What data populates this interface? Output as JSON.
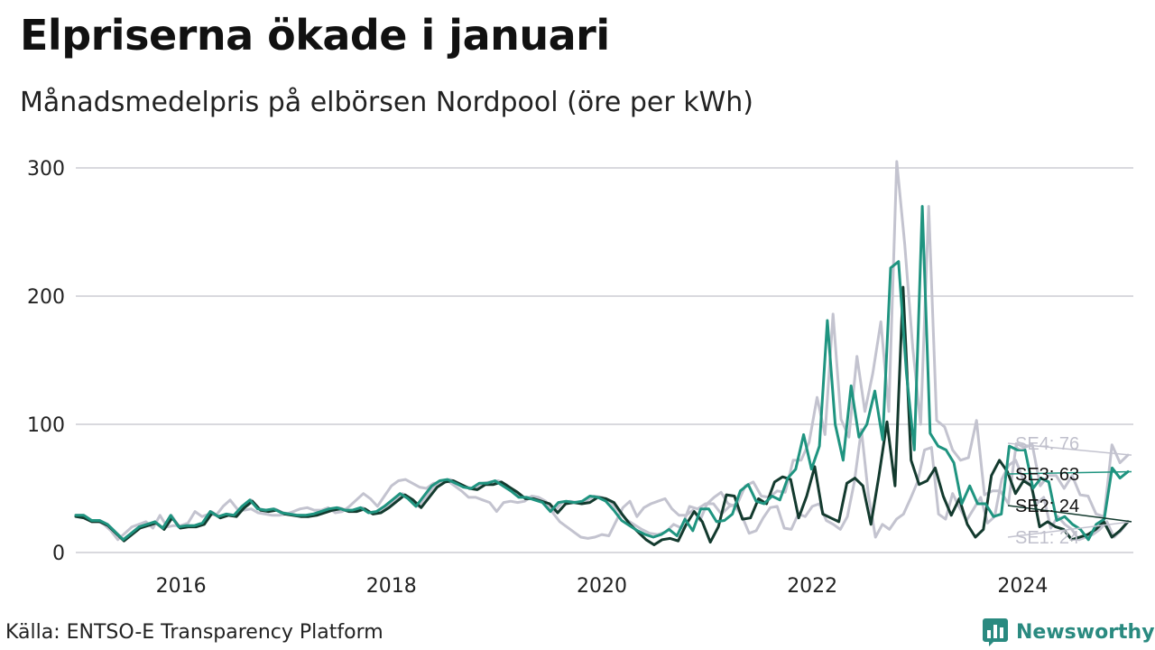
{
  "title": "Elpriserna ökade i januari",
  "subtitle": "Månadsmedelpris på elbörsen Nordpool (öre per kWh)",
  "source": "Källa: ENTSO-E Transparency Platform",
  "brand": {
    "name": "Newsworthy",
    "icon": "bar-chart-speech-bubble-icon",
    "color": "#2a8a80"
  },
  "chart_data": {
    "type": "line",
    "x_start": "2015-01",
    "x_end": "2025-01",
    "frequency": "monthly",
    "ylim": [
      0,
      300
    ],
    "yticks": [
      0,
      100,
      200,
      300
    ],
    "xticks": [
      "2016",
      "2018",
      "2020",
      "2022",
      "2024"
    ],
    "grid": "horizontal",
    "legend": "end-labels",
    "series": [
      {
        "name": "SE1",
        "end_label": "SE1: 24",
        "color": "#c3c3cf",
        "values": [
          29,
          29,
          25,
          25,
          22,
          17,
          10,
          15,
          20,
          22,
          24,
          19,
          29,
          20,
          21,
          21,
          23,
          32,
          28,
          30,
          29,
          36,
          41,
          34,
          33,
          34,
          31,
          30,
          29,
          29,
          30,
          32,
          34,
          35,
          33,
          33,
          35,
          31,
          32,
          36,
          41,
          46,
          42,
          36,
          44,
          52,
          56,
          57,
          54,
          51,
          50,
          54,
          54,
          56,
          52,
          48,
          43,
          43,
          41,
          39,
          32,
          39,
          40,
          39,
          40,
          44,
          43,
          40,
          31,
          24,
          20,
          16,
          12,
          11,
          12,
          14,
          13,
          24,
          35,
          40,
          28,
          35,
          38,
          40,
          42,
          34,
          29,
          29,
          33,
          25,
          38,
          43,
          47,
          38,
          36,
          28,
          15,
          17,
          27,
          35,
          36,
          19,
          18,
          30,
          28,
          36,
          38,
          25,
          22,
          18,
          28,
          55,
          96,
          45,
          12,
          22,
          18,
          26,
          30,
          42,
          55,
          80,
          82,
          30,
          26,
          46,
          35,
          25,
          34,
          43,
          23,
          28,
          57,
          68,
          72,
          58,
          54,
          38,
          43,
          19,
          28,
          22,
          18,
          10,
          12,
          14,
          18,
          24,
          12,
          17,
          24
        ]
      },
      {
        "name": "SE2",
        "end_label": "SE2: 24",
        "color": "#133a2e",
        "values": [
          28,
          27,
          24,
          24,
          21,
          15,
          9,
          14,
          19,
          21,
          23,
          18,
          27,
          19,
          20,
          20,
          22,
          31,
          27,
          29,
          28,
          35,
          40,
          33,
          32,
          33,
          30,
          29,
          28,
          28,
          29,
          31,
          33,
          34,
          32,
          32,
          34,
          30,
          31,
          35,
          40,
          45,
          41,
          35,
          43,
          51,
          55,
          56,
          53,
          50,
          49,
          53,
          53,
          55,
          51,
          47,
          42,
          42,
          40,
          38,
          31,
          38,
          39,
          38,
          39,
          43,
          42,
          39,
          30,
          22,
          16,
          10,
          6,
          10,
          11,
          9,
          22,
          32,
          24,
          8,
          20,
          45,
          44,
          26,
          27,
          42,
          38,
          55,
          59,
          57,
          27,
          44,
          67,
          30,
          27,
          24,
          54,
          58,
          52,
          22,
          60,
          102,
          52,
          207,
          72,
          53,
          56,
          66,
          44,
          29,
          42,
          22,
          12,
          18,
          60,
          72,
          63,
          46,
          56,
          52,
          20,
          24,
          20,
          18,
          10,
          12,
          14,
          18,
          24,
          12,
          17,
          24
        ]
      },
      {
        "name": "SE3",
        "end_label": "SE3: 63",
        "color": "#1f9480",
        "values": [
          29,
          29,
          25,
          25,
          22,
          16,
          10,
          15,
          20,
          22,
          24,
          19,
          29,
          20,
          21,
          21,
          23,
          32,
          28,
          30,
          29,
          36,
          41,
          34,
          33,
          34,
          31,
          30,
          29,
          29,
          30,
          32,
          34,
          35,
          33,
          33,
          35,
          31,
          32,
          36,
          41,
          46,
          42,
          36,
          44,
          52,
          56,
          57,
          54,
          51,
          50,
          54,
          54,
          56,
          52,
          48,
          43,
          43,
          41,
          39,
          32,
          39,
          40,
          39,
          40,
          44,
          43,
          40,
          33,
          25,
          21,
          17,
          14,
          12,
          14,
          18,
          13,
          26,
          17,
          34,
          34,
          24,
          25,
          30,
          48,
          53,
          40,
          38,
          44,
          41,
          58,
          65,
          92,
          65,
          83,
          181,
          100,
          72,
          130,
          90,
          100,
          126,
          88,
          222,
          227,
          140,
          80,
          270,
          93,
          83,
          80,
          70,
          38,
          52,
          38,
          38,
          28,
          30,
          83,
          80,
          80,
          50,
          58,
          55,
          25,
          28,
          22,
          18,
          10,
          22,
          26,
          66,
          58,
          63
        ]
      },
      {
        "name": "SE4",
        "end_label": "SE4: 76",
        "color": "#c3c3cf",
        "values": [
          29,
          29,
          25,
          25,
          22,
          16,
          10,
          15,
          20,
          22,
          24,
          19,
          29,
          20,
          21,
          21,
          23,
          32,
          28,
          30,
          29,
          36,
          41,
          34,
          33,
          34,
          31,
          30,
          29,
          29,
          30,
          32,
          34,
          35,
          33,
          33,
          35,
          31,
          32,
          36,
          41,
          46,
          42,
          36,
          44,
          52,
          56,
          57,
          54,
          51,
          50,
          54,
          55,
          56,
          53,
          48,
          43,
          43,
          41,
          39,
          32,
          39,
          40,
          39,
          40,
          44,
          43,
          40,
          33,
          26,
          22,
          18,
          15,
          14,
          16,
          22,
          19,
          36,
          34,
          38,
          38,
          30,
          36,
          38,
          52,
          55,
          44,
          43,
          48,
          47,
          72,
          72,
          86,
          121,
          92,
          186,
          104,
          90,
          153,
          110,
          140,
          180,
          110,
          305,
          240,
          160,
          100,
          270,
          103,
          98,
          80,
          72,
          74,
          103,
          45,
          48,
          48,
          38,
          85,
          82,
          84,
          52,
          60,
          60,
          50,
          60,
          45,
          44,
          30,
          28,
          84,
          70,
          76
        ]
      }
    ]
  }
}
